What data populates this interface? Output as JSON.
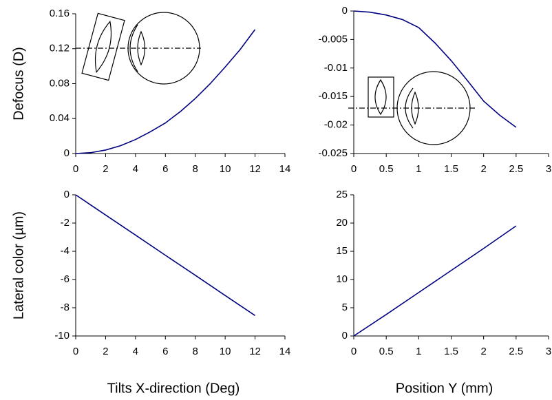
{
  "chart_data": [
    {
      "type": "line",
      "ylabel": "Defocus (D)",
      "color": "#000080",
      "x": [
        0,
        1,
        2,
        3,
        4,
        5,
        6,
        7,
        8,
        9,
        10,
        11,
        12
      ],
      "values": [
        0,
        0.001,
        0.004,
        0.009,
        0.016,
        0.025,
        0.035,
        0.048,
        0.063,
        0.08,
        0.099,
        0.119,
        0.142
      ],
      "xlim": [
        0,
        14
      ],
      "xticks": [
        0,
        2,
        4,
        6,
        8,
        10,
        12,
        14
      ],
      "ylim": [
        0,
        0.16
      ],
      "yticks": [
        0,
        0.04,
        0.08,
        0.12,
        0.16
      ]
    },
    {
      "type": "line",
      "color": "#000080",
      "x": [
        0,
        0.25,
        0.5,
        0.75,
        1,
        1.25,
        1.5,
        1.75,
        2,
        2.25,
        2.5
      ],
      "values": [
        0,
        -0.0002,
        -0.0007,
        -0.0015,
        -0.0029,
        -0.0056,
        -0.0087,
        -0.0122,
        -0.0158,
        -0.0183,
        -0.0204
      ],
      "xlim": [
        0,
        3
      ],
      "xticks": [
        0,
        0.5,
        1,
        1.5,
        2,
        2.5,
        3
      ],
      "ylim": [
        -0.025,
        0
      ],
      "yticks": [
        0,
        -0.005,
        -0.01,
        -0.015,
        -0.02,
        -0.025
      ]
    },
    {
      "type": "line",
      "ylabel": "Lateral color (µm)",
      "xlabel": "Tilts X-direction (Deg)",
      "color": "#000080",
      "x": [
        0,
        2,
        4,
        6,
        8,
        10,
        12
      ],
      "values": [
        0,
        -1.43,
        -2.85,
        -4.28,
        -5.7,
        -7.13,
        -8.55
      ],
      "xlim": [
        0,
        14
      ],
      "xticks": [
        0,
        2,
        4,
        6,
        8,
        10,
        12,
        14
      ],
      "ylim": [
        -10,
        0
      ],
      "yticks": [
        0,
        -2,
        -4,
        -6,
        -8,
        -10
      ]
    },
    {
      "type": "line",
      "xlabel": "Position Y (mm)",
      "color": "#000080",
      "x": [
        0,
        0.5,
        1,
        1.5,
        2,
        2.5
      ],
      "values": [
        0,
        3.8,
        7.7,
        11.6,
        15.5,
        19.5
      ],
      "xlim": [
        0,
        3
      ],
      "xticks": [
        0,
        0.5,
        1,
        1.5,
        2,
        2.5,
        3
      ],
      "ylim": [
        0,
        25
      ],
      "yticks": [
        0,
        5,
        10,
        15,
        20,
        25
      ]
    }
  ]
}
